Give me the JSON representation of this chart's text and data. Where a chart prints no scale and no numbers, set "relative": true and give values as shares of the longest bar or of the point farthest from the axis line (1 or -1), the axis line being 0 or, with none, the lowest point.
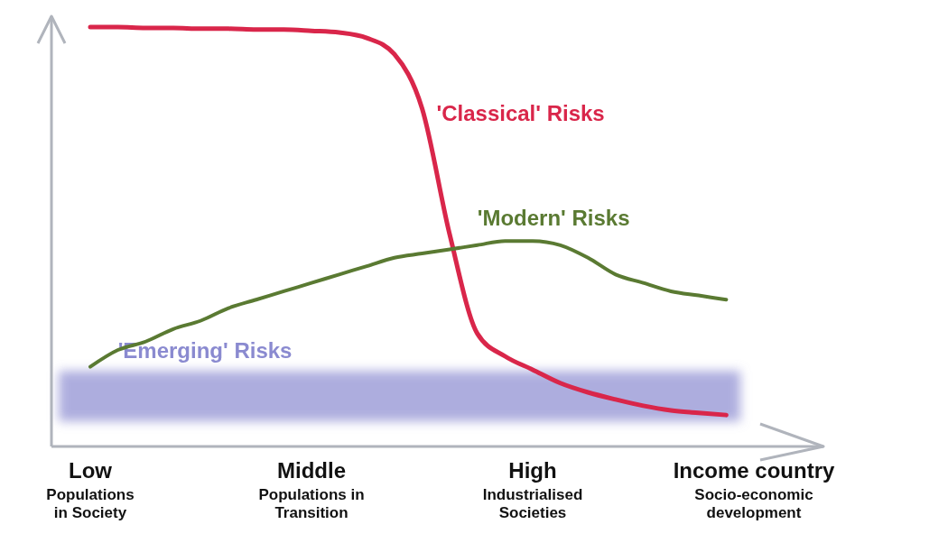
{
  "chart_data": {
    "type": "line",
    "relative": true,
    "categories": [
      "Low\nPopulations\nin Society",
      null,
      null,
      null,
      null,
      null,
      null,
      null,
      "Middle\nPopulations in\nTransition",
      null,
      null,
      null,
      null,
      null,
      null,
      null,
      "High\nIndustrialised\nSocieties",
      null,
      null,
      null,
      null,
      null,
      null,
      null,
      "Income country\nSocio-economic\ndevelopment"
    ],
    "series": [
      {
        "name": "'Classical' Risks",
        "color": "#d9264a",
        "values": [
          1.0,
          1.0,
          0.998,
          0.998,
          0.996,
          0.996,
          0.994,
          0.994,
          0.991,
          0.987,
          0.974,
          0.935,
          0.806,
          0.505,
          0.269,
          0.215,
          0.183,
          0.151,
          0.129,
          0.112,
          0.097,
          0.086,
          0.08,
          0.075,
          null
        ]
      },
      {
        "name": "'Modern' Risks",
        "color": "#5a7a32",
        "values": [
          0.19,
          0.23,
          0.25,
          0.28,
          0.3,
          0.33,
          0.35,
          0.37,
          0.39,
          0.41,
          0.43,
          0.45,
          0.46,
          0.47,
          0.48,
          0.49,
          0.49,
          0.48,
          0.45,
          0.41,
          0.39,
          0.37,
          0.36,
          0.35,
          null
        ]
      }
    ],
    "bands": [
      {
        "axis": "y",
        "from": 0.06,
        "to": 0.18,
        "label": "'Emerging' Risks",
        "color": "#8a8ad0"
      }
    ]
  }
}
